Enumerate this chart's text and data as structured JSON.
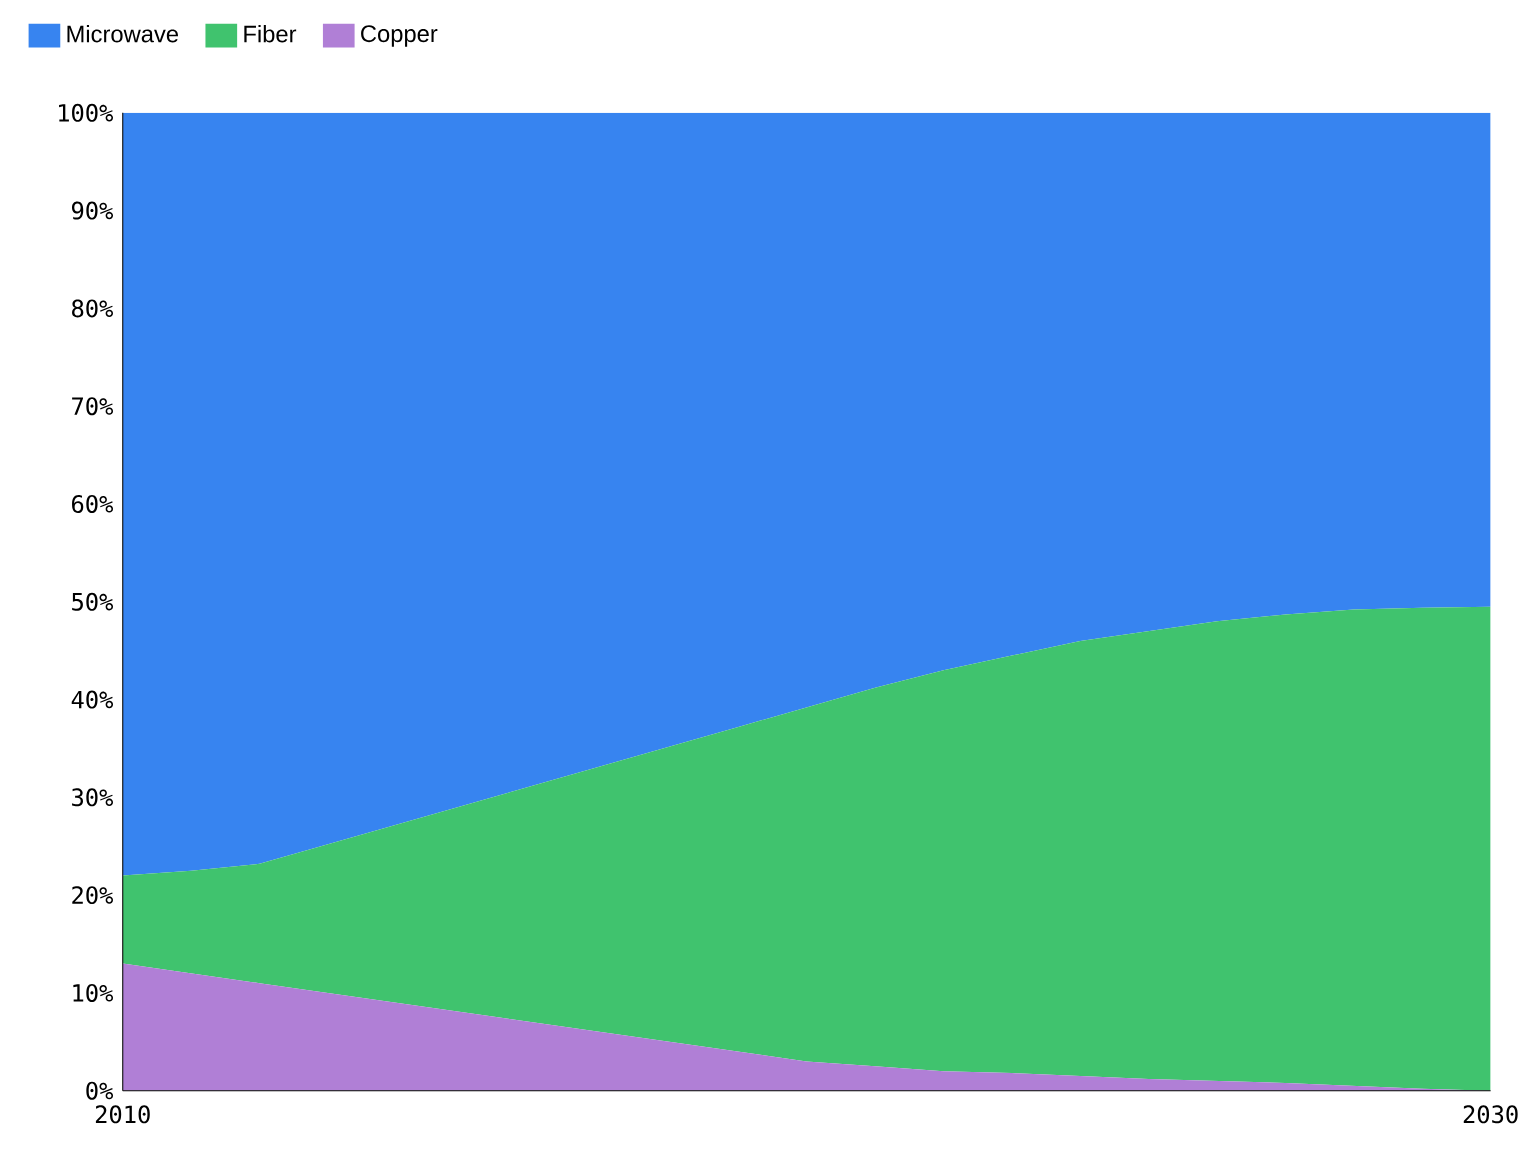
{
  "chart_data": {
    "type": "area",
    "stacked": true,
    "x": [
      2010,
      2011,
      2012,
      2013,
      2014,
      2015,
      2016,
      2017,
      2018,
      2019,
      2020,
      2021,
      2022,
      2023,
      2024,
      2025,
      2026,
      2027,
      2028,
      2029,
      2030
    ],
    "series": [
      {
        "name": "Copper",
        "color": "#b07fd6",
        "values": [
          13,
          12,
          11,
          10,
          9,
          8,
          7,
          6,
          5,
          4,
          3,
          2.5,
          2,
          1.8,
          1.5,
          1.2,
          1,
          0.8,
          0.5,
          0.2,
          0
        ]
      },
      {
        "name": "Fiber",
        "color": "#40c36e",
        "values": [
          9,
          10.5,
          12.2,
          15.2,
          18.2,
          21.2,
          24.2,
          27.2,
          30.2,
          33.2,
          36.2,
          38.7,
          41,
          42.7,
          44.5,
          45.8,
          47,
          47.9,
          48.7,
          49.2,
          49.5
        ]
      },
      {
        "name": "Microwave",
        "color": "#3784f0",
        "values": [
          78,
          77.5,
          76.8,
          74.8,
          72.8,
          70.8,
          68.8,
          66.8,
          64.8,
          62.8,
          60.8,
          58.8,
          57,
          55.5,
          54,
          53,
          52,
          51.3,
          50.8,
          50.6,
          50.5
        ]
      }
    ],
    "xlim": [
      2010,
      2030
    ],
    "xticks": [
      2010,
      2030
    ],
    "ylim": [
      0,
      100
    ],
    "yticks": [
      {
        "value": 0,
        "label": "0%"
      },
      {
        "value": 10,
        "label": "10%"
      },
      {
        "value": 20,
        "label": "20%"
      },
      {
        "value": 30,
        "label": "30%"
      },
      {
        "value": 40,
        "label": "40%"
      },
      {
        "value": 50,
        "label": "50%"
      },
      {
        "value": 60,
        "label": "60%"
      },
      {
        "value": 70,
        "label": "70%"
      },
      {
        "value": 80,
        "label": "80%"
      },
      {
        "value": 90,
        "label": "90%"
      },
      {
        "value": 100,
        "label": "100%"
      }
    ],
    "grid": false,
    "legend": "top left"
  }
}
